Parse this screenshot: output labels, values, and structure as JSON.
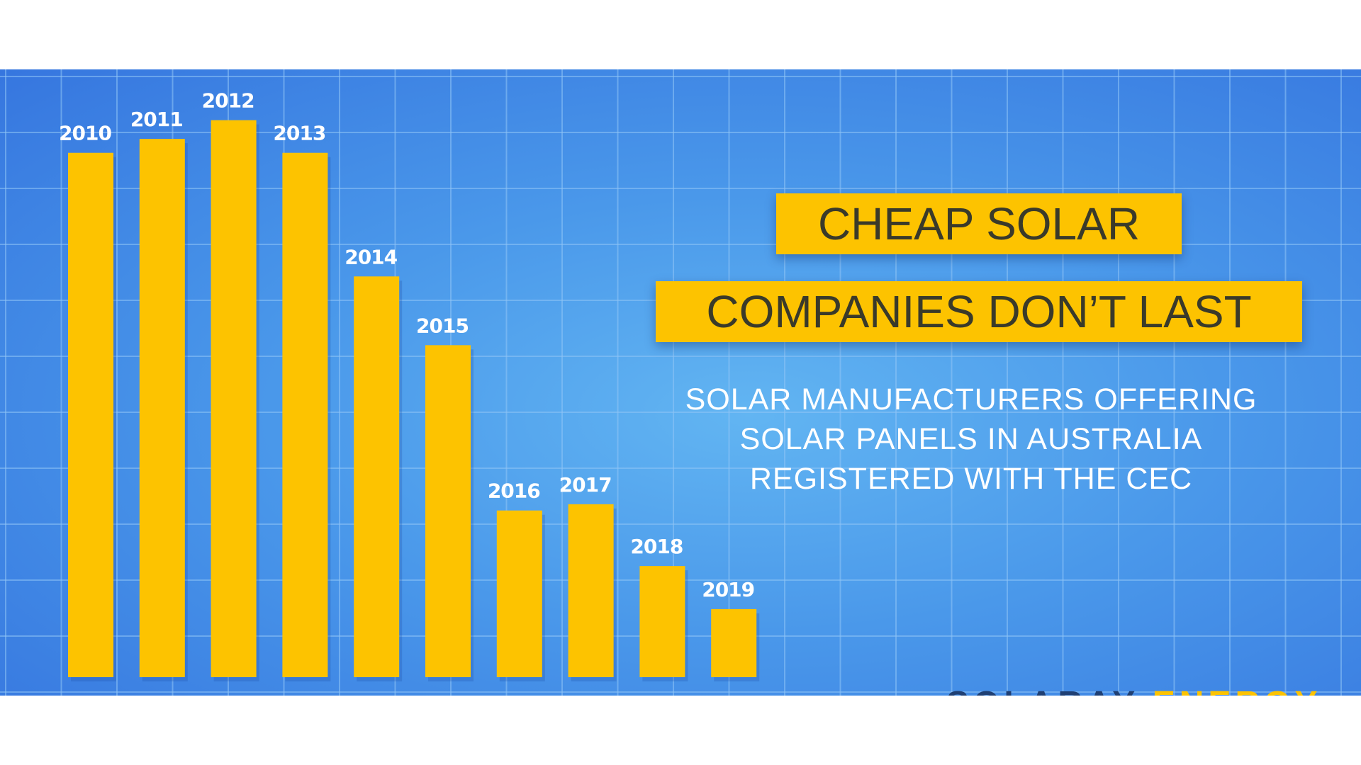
{
  "headline": {
    "line1": "CHEAP SOLAR",
    "line2": "COMPANIES DON’T LAST"
  },
  "subtitle": [
    "SOLAR MANUFACTURERS OFFERING",
    "SOLAR PANELS IN AUSTRALIA",
    "REGISTERED WITH THE CEC"
  ],
  "brand": {
    "part1": "SOLARAY",
    "part2": "ENERGY"
  },
  "colors": {
    "bar": "#fdc300",
    "background": "#4a98ea",
    "grid": "#8fc4f5",
    "label": "#ffffff"
  },
  "chart_data": {
    "type": "bar",
    "categories": [
      "2010",
      "2011",
      "2012",
      "2013",
      "2014",
      "2015",
      "2016",
      "2017",
      "2018",
      "2019"
    ],
    "values": [
      755,
      775,
      802,
      755,
      577,
      478,
      240,
      249,
      160,
      98
    ],
    "ylim": [
      0,
      820
    ],
    "grid": true,
    "title": "",
    "xlabel": "",
    "ylabel": ""
  }
}
